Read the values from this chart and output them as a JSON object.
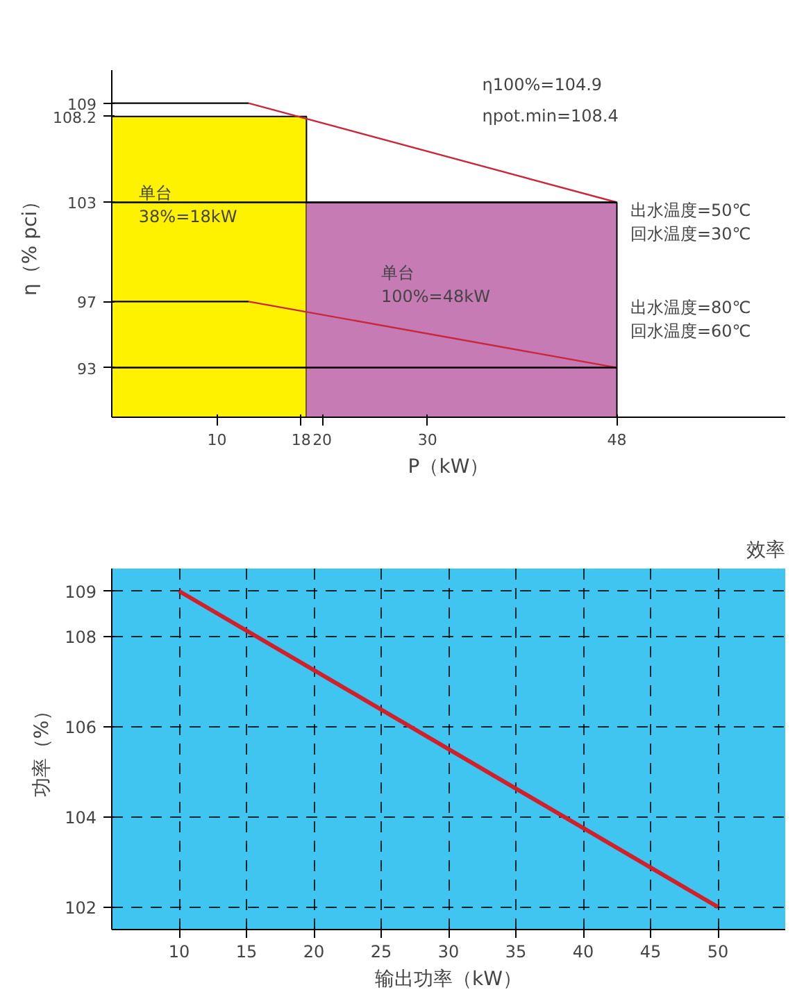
{
  "chart_data": [
    {
      "type": "line",
      "ylabel": "η（% pci）",
      "xlabel": "P（kW）",
      "xlim": [
        0,
        64
      ],
      "ylim": [
        90,
        111
      ],
      "xticks": [
        10,
        18,
        20,
        30,
        48
      ],
      "yticks": [
        93,
        97,
        103,
        108.2,
        109
      ],
      "grid": false,
      "annotations": [
        "η100%=104.9",
        "ηpot.min=108.4",
        "单台\n38%=18kW",
        "单台\n100%=48kW",
        "出水温度=50℃\n回水温度=30℃",
        "出水温度=80℃\n回水温度=60℃"
      ],
      "series": [
        {
          "type": "area",
          "color": "#fff200",
          "x": [
            0,
            18.5
          ],
          "values": [
            108.2,
            108.2
          ]
        },
        {
          "type": "area",
          "color": "#c77bb5",
          "x": [
            18.5,
            48
          ],
          "values": [
            103,
            103
          ]
        },
        {
          "color": "#000000",
          "x": [
            0,
            13
          ],
          "values": [
            109,
            109
          ]
        },
        {
          "color": "#c8283c",
          "x": [
            13,
            48
          ],
          "values": [
            109,
            103
          ]
        },
        {
          "color": "#000000",
          "x": [
            0,
            48
          ],
          "values": [
            103,
            103
          ]
        },
        {
          "color": "#000000",
          "x": [
            0,
            13
          ],
          "values": [
            97,
            97
          ]
        },
        {
          "color": "#c8283c",
          "x": [
            13,
            48
          ],
          "values": [
            97,
            93
          ]
        },
        {
          "color": "#000000",
          "x": [
            0,
            48
          ],
          "values": [
            93,
            93
          ]
        }
      ]
    },
    {
      "type": "line",
      "title": "效率",
      "ylabel": "功率（%）",
      "xlabel": "输出功率（kW）",
      "xlim": [
        5,
        55
      ],
      "ylim": [
        101.5,
        109.5
      ],
      "xticks": [
        10,
        15,
        20,
        25,
        30,
        35,
        40,
        45,
        50
      ],
      "yticks": [
        102,
        104,
        106,
        108,
        109
      ],
      "grid": true,
      "series": [
        {
          "color": "#d0202a",
          "x": [
            10,
            50
          ],
          "values": [
            109,
            102
          ]
        }
      ]
    }
  ]
}
